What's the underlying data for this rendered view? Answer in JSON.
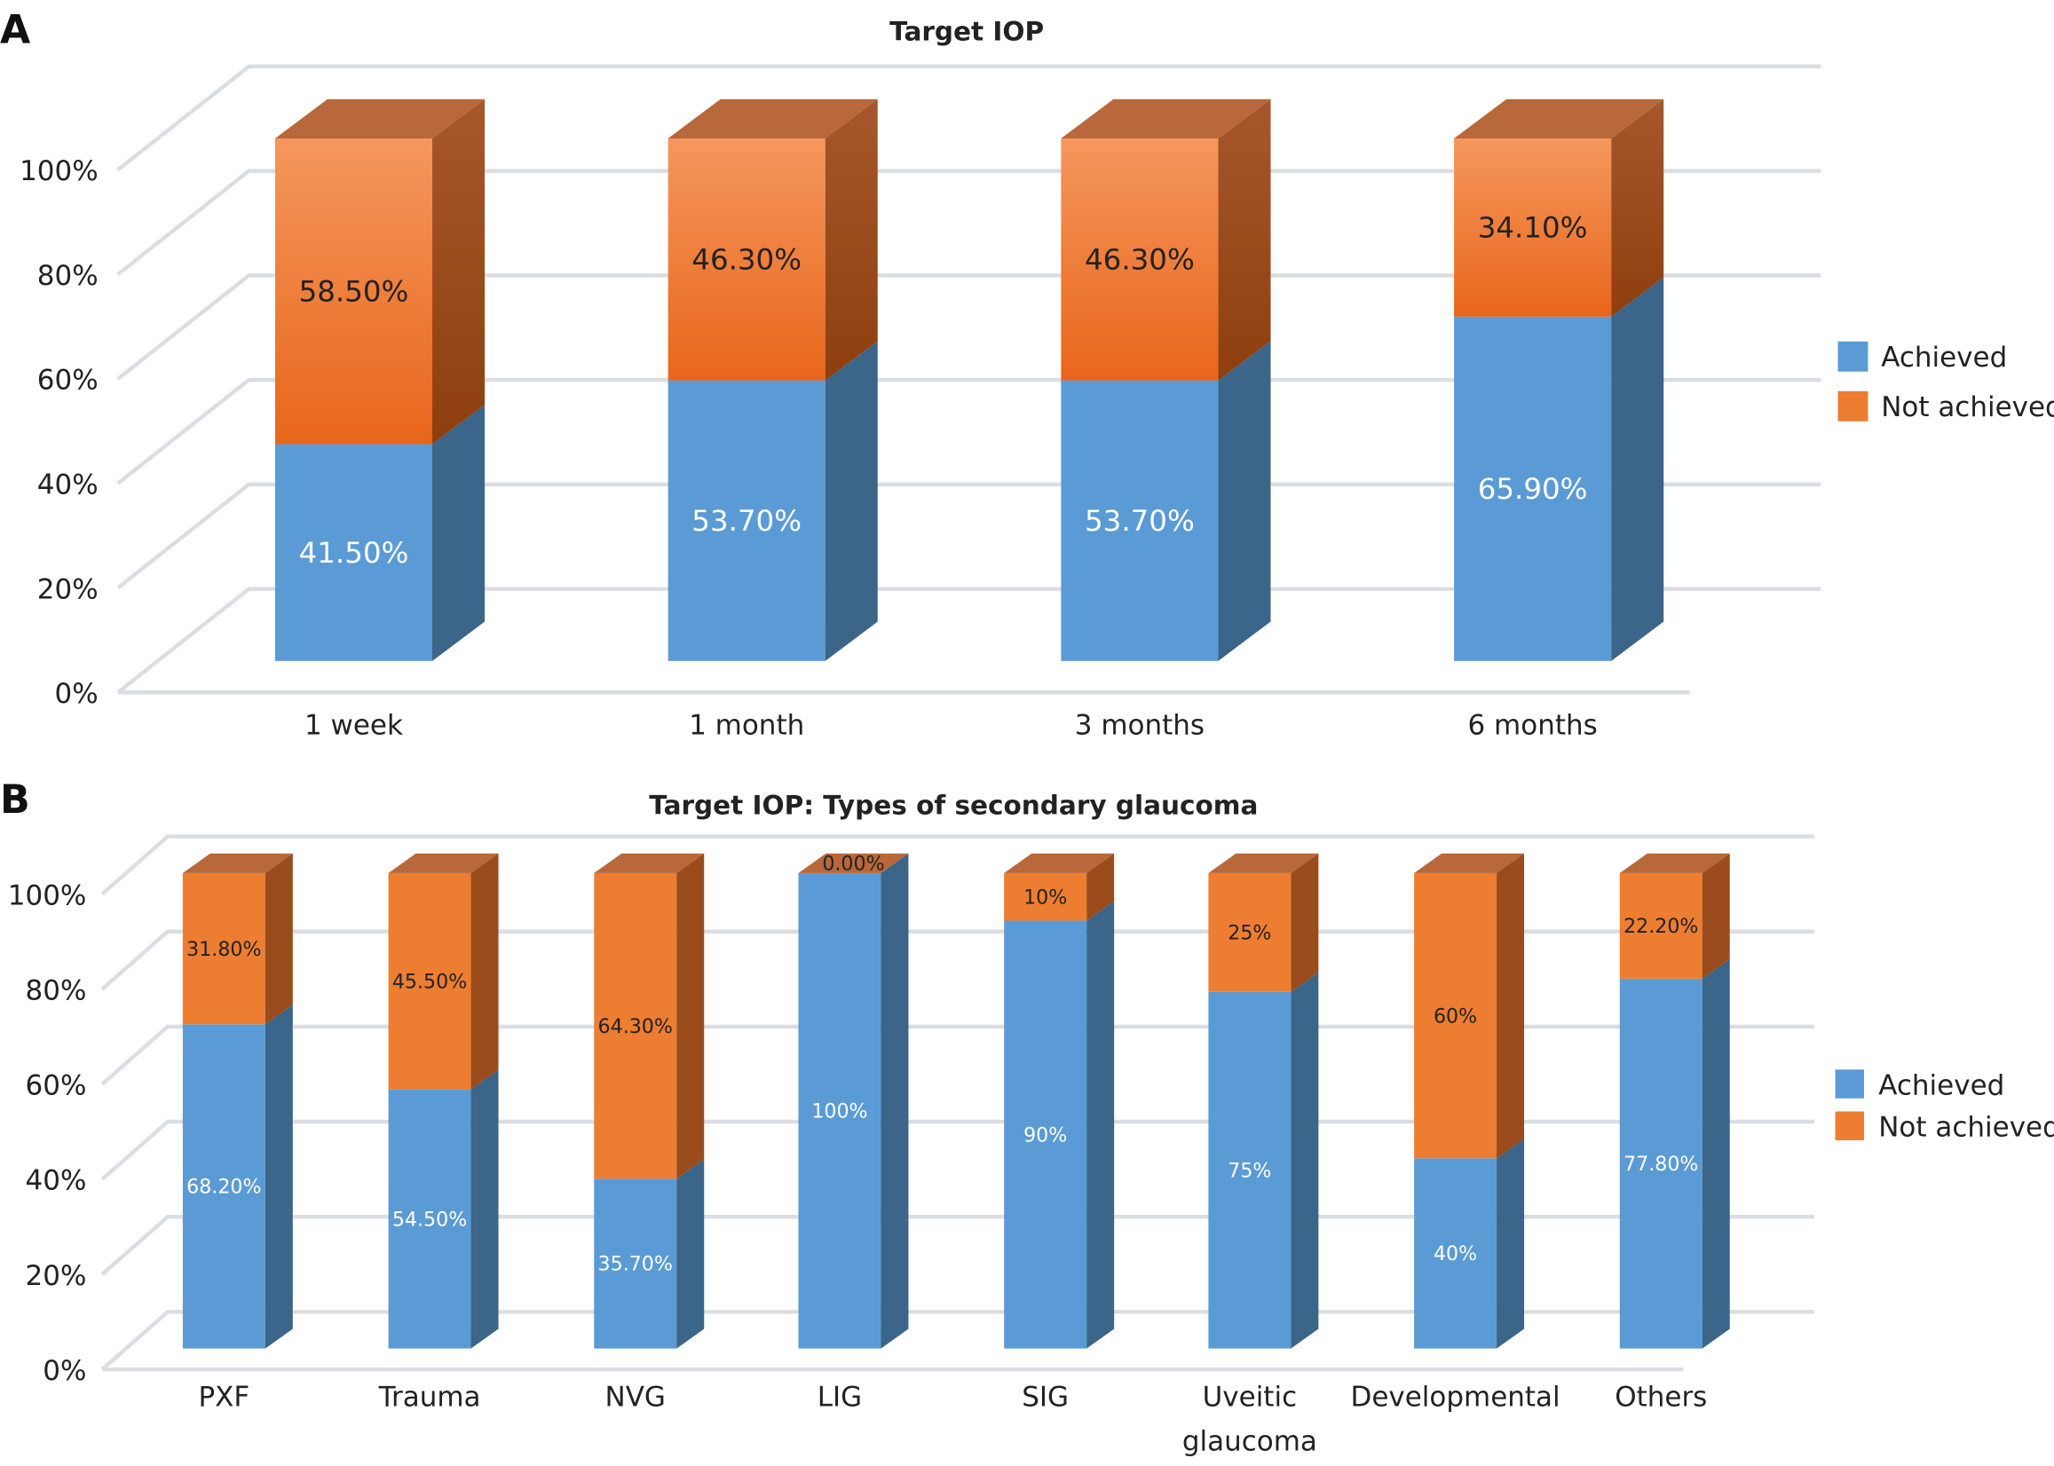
{
  "colors": {
    "achieved": "#5b9bd5",
    "achieved_side": "#3b6589",
    "not_achieved": "#ed7d31",
    "not_achieved_side": "#9a4c1c",
    "not_achieved_top": "#b8683a"
  },
  "chart_data": [
    {
      "panel": "A",
      "type": "bar",
      "stacked": true,
      "style": "3d",
      "title": "Target IOP",
      "categories": [
        "1 week",
        "1 month",
        "3 months",
        "6 months"
      ],
      "series": [
        {
          "name": "Achieved",
          "values": [
            41.5,
            53.7,
            53.7,
            65.9
          ],
          "labels": [
            "41.50%",
            "53.70%",
            "53.70%",
            "65.90%"
          ]
        },
        {
          "name": "Not achieved",
          "values": [
            58.5,
            46.3,
            46.3,
            34.1
          ],
          "labels": [
            "58.50%",
            "46.30%",
            "46.30%",
            "34.10%"
          ]
        }
      ],
      "ylim": [
        0,
        100
      ],
      "yticks": [
        "0%",
        "20%",
        "40%",
        "60%",
        "80%",
        "100%"
      ],
      "grid": true,
      "legend": "right"
    },
    {
      "panel": "B",
      "type": "bar",
      "stacked": true,
      "style": "3d",
      "title": "Target IOP: Types of secondary glaucoma",
      "categories": [
        "PXF",
        "Trauma",
        "NVG",
        "LIG",
        "SIG",
        "Uveitic glaucoma",
        "Developmental",
        "Others"
      ],
      "series": [
        {
          "name": "Achieved",
          "values": [
            68.2,
            54.5,
            35.7,
            100,
            90,
            75,
            40,
            77.8
          ],
          "labels": [
            "68.20%",
            "54.50%",
            "35.70%",
            "100%",
            "90%",
            "75%",
            "40%",
            "77.80%"
          ]
        },
        {
          "name": "Not achieved",
          "values": [
            31.8,
            45.5,
            64.3,
            0,
            10,
            25,
            60,
            22.2
          ],
          "labels": [
            "31.80%",
            "45.50%",
            "64.30%",
            "0.00%",
            "10%",
            "25%",
            "60%",
            "22.20%"
          ]
        }
      ],
      "ylim": [
        0,
        100
      ],
      "yticks": [
        "0%",
        "20%",
        "40%",
        "60%",
        "80%",
        "100%"
      ],
      "grid": true,
      "legend": "right"
    }
  ]
}
